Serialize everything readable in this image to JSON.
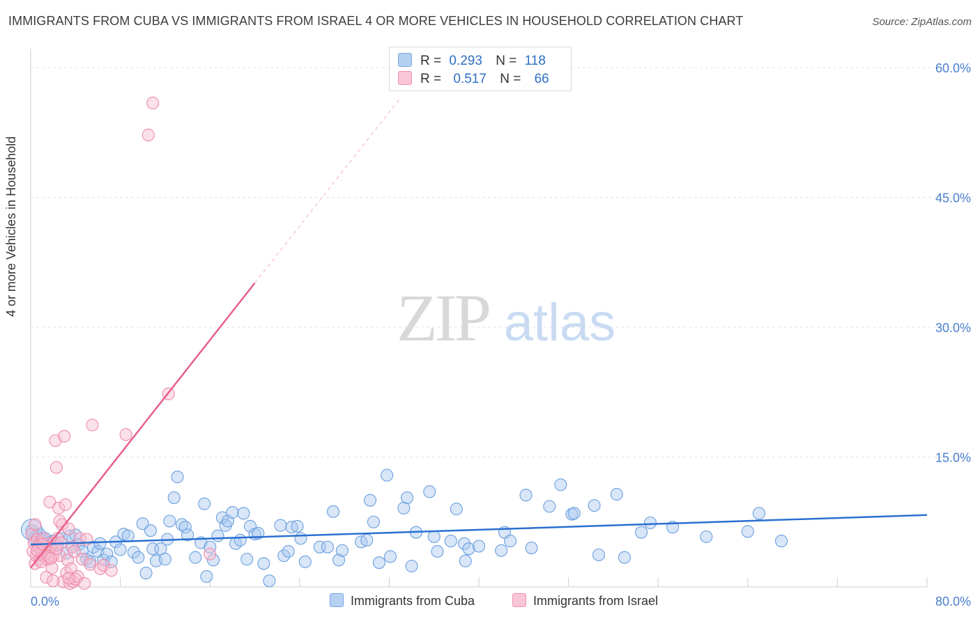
{
  "header": {
    "title": "IMMIGRANTS FROM CUBA VS IMMIGRANTS FROM ISRAEL 4 OR MORE VEHICLES IN HOUSEHOLD CORRELATION CHART",
    "source": "Source: ZipAtlas.com"
  },
  "watermark": {
    "zip": "ZIP",
    "atlas": "atlas"
  },
  "legend": {
    "cuba": {
      "r_label": "R =",
      "r_value": "0.293",
      "n_label": "N =",
      "n_value": "118"
    },
    "israel": {
      "r_label": "R =",
      "r_value": "0.517",
      "n_label": "N =",
      "n_value": "66"
    }
  },
  "bottom_legend": {
    "cuba": "Immigrants from Cuba",
    "israel": "Immigrants from Israel"
  },
  "colors": {
    "cuba": "#6b9fde",
    "cuba_fill": "#a9c8f0",
    "cuba_line": "#2a6fd0",
    "israel": "#ee8aaa",
    "israel_fill": "#f7bcd0",
    "israel_line": "#e8608a",
    "tick": "#4a7fd0"
  },
  "chart_data": {
    "type": "scatter",
    "title": "IMMIGRANTS FROM CUBA VS IMMIGRANTS FROM ISRAEL 4 OR MORE VEHICLES IN HOUSEHOLD CORRELATION CHART",
    "xlabel": "",
    "ylabel": "4 or more Vehicles in Household",
    "xlim": [
      0,
      80
    ],
    "ylim": [
      0,
      62
    ],
    "x_tick_labels": [
      "0.0%",
      "80.0%"
    ],
    "y_ticks": [
      15,
      30,
      45,
      60
    ],
    "y_tick_labels": [
      "15.0%",
      "30.0%",
      "45.0%",
      "60.0%"
    ],
    "series": [
      {
        "name": "Immigrants from Cuba",
        "R": 0.293,
        "N": 118,
        "trend": {
          "x": [
            0,
            80
          ],
          "y": [
            4.9,
            8.3
          ]
        },
        "points": [
          [
            0.1,
            6.5
          ],
          [
            0.3,
            5.6
          ],
          [
            0.5,
            5.9
          ],
          [
            0.8,
            6.1
          ],
          [
            1.0,
            5.4
          ],
          [
            1.3,
            5.6
          ],
          [
            1.6,
            5.1
          ],
          [
            2.0,
            5.3
          ],
          [
            2.4,
            4.8
          ],
          [
            2.8,
            5.6
          ],
          [
            3.2,
            3.9
          ],
          [
            3.5,
            5.9
          ],
          [
            3.7,
            4.6
          ],
          [
            4.0,
            6.0
          ],
          [
            4.3,
            4.9
          ],
          [
            4.6,
            4.1
          ],
          [
            5.0,
            3.2
          ],
          [
            5.3,
            2.9
          ],
          [
            5.6,
            4.6
          ],
          [
            6.0,
            4.1
          ],
          [
            6.2,
            5.0
          ],
          [
            6.5,
            3.1
          ],
          [
            6.8,
            3.8
          ],
          [
            7.2,
            2.9
          ],
          [
            7.6,
            5.2
          ],
          [
            8.0,
            4.3
          ],
          [
            8.3,
            6.1
          ],
          [
            8.7,
            5.9
          ],
          [
            9.2,
            4.0
          ],
          [
            9.6,
            3.4
          ],
          [
            10.0,
            7.3
          ],
          [
            10.3,
            1.6
          ],
          [
            10.7,
            6.5
          ],
          [
            10.9,
            4.4
          ],
          [
            11.2,
            3.0
          ],
          [
            11.6,
            4.4
          ],
          [
            12.0,
            3.2
          ],
          [
            12.2,
            5.5
          ],
          [
            12.4,
            7.6
          ],
          [
            12.8,
            10.3
          ],
          [
            13.1,
            12.7
          ],
          [
            13.5,
            7.2
          ],
          [
            13.8,
            6.9
          ],
          [
            14.0,
            6.0
          ],
          [
            14.7,
            3.4
          ],
          [
            15.2,
            5.1
          ],
          [
            15.5,
            9.6
          ],
          [
            15.7,
            1.2
          ],
          [
            16.0,
            4.6
          ],
          [
            16.3,
            3.1
          ],
          [
            16.7,
            5.9
          ],
          [
            17.1,
            8.0
          ],
          [
            17.4,
            7.1
          ],
          [
            17.6,
            7.6
          ],
          [
            18.0,
            8.6
          ],
          [
            18.3,
            5.0
          ],
          [
            18.7,
            5.4
          ],
          [
            19.0,
            8.5
          ],
          [
            19.3,
            3.2
          ],
          [
            19.6,
            7.0
          ],
          [
            20.0,
            6.1
          ],
          [
            20.3,
            6.2
          ],
          [
            20.8,
            2.7
          ],
          [
            21.3,
            0.7
          ],
          [
            22.3,
            7.1
          ],
          [
            22.6,
            3.6
          ],
          [
            23.0,
            4.1
          ],
          [
            23.3,
            6.9
          ],
          [
            23.8,
            7.0
          ],
          [
            24.1,
            5.6
          ],
          [
            24.5,
            2.9
          ],
          [
            25.8,
            4.6
          ],
          [
            26.5,
            4.6
          ],
          [
            27.0,
            8.7
          ],
          [
            27.5,
            3.1
          ],
          [
            27.8,
            4.2
          ],
          [
            29.5,
            5.2
          ],
          [
            30.0,
            5.4
          ],
          [
            30.3,
            10.0
          ],
          [
            30.6,
            7.5
          ],
          [
            31.1,
            2.8
          ],
          [
            31.8,
            12.9
          ],
          [
            32.1,
            3.5
          ],
          [
            33.3,
            9.1
          ],
          [
            33.6,
            10.3
          ],
          [
            34.0,
            2.4
          ],
          [
            34.4,
            6.3
          ],
          [
            35.6,
            11.0
          ],
          [
            36.0,
            5.8
          ],
          [
            36.3,
            4.1
          ],
          [
            37.5,
            5.3
          ],
          [
            38.0,
            9.0
          ],
          [
            38.7,
            5.0
          ],
          [
            38.8,
            3.0
          ],
          [
            39.1,
            4.4
          ],
          [
            40.0,
            4.7
          ],
          [
            42.3,
            6.3
          ],
          [
            42.8,
            5.3
          ],
          [
            44.2,
            10.6
          ],
          [
            44.7,
            4.5
          ],
          [
            46.3,
            9.3
          ],
          [
            47.3,
            11.8
          ],
          [
            48.3,
            8.4
          ],
          [
            48.5,
            8.5
          ],
          [
            50.3,
            9.4
          ],
          [
            50.7,
            3.7
          ],
          [
            52.3,
            10.7
          ],
          [
            53.0,
            3.4
          ],
          [
            54.5,
            6.3
          ],
          [
            55.3,
            7.4
          ],
          [
            57.3,
            6.9
          ],
          [
            60.3,
            5.8
          ],
          [
            64.0,
            6.4
          ],
          [
            65.0,
            8.5
          ],
          [
            67.0,
            5.3
          ],
          [
            42.0,
            4.2
          ]
        ]
      },
      {
        "name": "Immigrants from Israel",
        "R": 0.517,
        "N": 66,
        "trend": {
          "x": [
            0,
            20
          ],
          "y": [
            2.2,
            35.1
          ]
        },
        "trend_extension": {
          "x": [
            20,
            33
          ],
          "y": [
            35.1,
            56.5
          ]
        },
        "points": [
          [
            0.1,
            6.1
          ],
          [
            0.2,
            4.1
          ],
          [
            0.3,
            5.1
          ],
          [
            0.4,
            2.7
          ],
          [
            0.5,
            3.6
          ],
          [
            0.6,
            5.5
          ],
          [
            0.7,
            4.6
          ],
          [
            0.8,
            3.2
          ],
          [
            0.9,
            5.1
          ],
          [
            1.0,
            4.1
          ],
          [
            1.1,
            5.6
          ],
          [
            1.2,
            3.6
          ],
          [
            1.3,
            4.6
          ],
          [
            1.4,
            1.1
          ],
          [
            1.5,
            3.2
          ],
          [
            1.6,
            4.1
          ],
          [
            1.7,
            9.8
          ],
          [
            1.8,
            4.6
          ],
          [
            1.9,
            2.2
          ],
          [
            2.0,
            3.6
          ],
          [
            2.1,
            5.1
          ],
          [
            2.2,
            16.9
          ],
          [
            2.3,
            13.8
          ],
          [
            2.4,
            5.6
          ],
          [
            2.5,
            9.1
          ],
          [
            2.6,
            3.6
          ],
          [
            2.7,
            5.1
          ],
          [
            2.8,
            7.2
          ],
          [
            2.9,
            0.6
          ],
          [
            3.0,
            17.4
          ],
          [
            3.1,
            9.5
          ],
          [
            3.2,
            1.6
          ],
          [
            3.3,
            3.1
          ],
          [
            3.4,
            6.7
          ],
          [
            3.5,
            0.4
          ],
          [
            3.6,
            2.1
          ],
          [
            3.7,
            4.6
          ],
          [
            3.8,
            0.6
          ],
          [
            3.9,
            4.1
          ],
          [
            4.0,
            0.9
          ],
          [
            4.2,
            1.2
          ],
          [
            4.4,
            5.6
          ],
          [
            4.6,
            3.2
          ],
          [
            4.8,
            0.4
          ],
          [
            5.0,
            5.5
          ],
          [
            5.3,
            2.6
          ],
          [
            5.5,
            18.7
          ],
          [
            6.2,
            2.1
          ],
          [
            6.5,
            2.5
          ],
          [
            7.2,
            1.9
          ],
          [
            8.5,
            17.6
          ],
          [
            10.5,
            52.2
          ],
          [
            10.9,
            55.9
          ],
          [
            12.3,
            22.3
          ],
          [
            16.0,
            3.8
          ],
          [
            0.4,
            7.2
          ],
          [
            1.3,
            3.8
          ],
          [
            2.6,
            7.6
          ],
          [
            0.9,
            2.9
          ],
          [
            1.6,
            3.5
          ],
          [
            2.0,
            0.7
          ],
          [
            3.4,
            1.0
          ],
          [
            0.6,
            4.2
          ],
          [
            1.1,
            4.9
          ],
          [
            1.8,
            3.3
          ],
          [
            2.3,
            4.4
          ]
        ]
      }
    ]
  }
}
